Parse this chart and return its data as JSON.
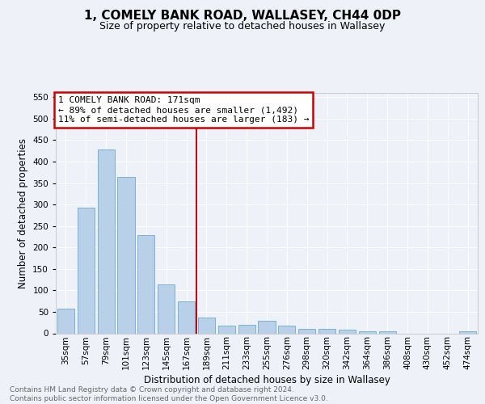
{
  "title": "1, COMELY BANK ROAD, WALLASEY, CH44 0DP",
  "subtitle": "Size of property relative to detached houses in Wallasey",
  "xlabel": "Distribution of detached houses by size in Wallasey",
  "ylabel": "Number of detached properties",
  "bar_labels": [
    "35sqm",
    "57sqm",
    "79sqm",
    "101sqm",
    "123sqm",
    "145sqm",
    "167sqm",
    "189sqm",
    "211sqm",
    "233sqm",
    "255sqm",
    "276sqm",
    "298sqm",
    "320sqm",
    "342sqm",
    "364sqm",
    "386sqm",
    "408sqm",
    "430sqm",
    "452sqm",
    "474sqm"
  ],
  "bar_values": [
    57,
    293,
    428,
    365,
    228,
    113,
    75,
    37,
    18,
    20,
    29,
    17,
    11,
    10,
    8,
    5,
    4,
    0,
    0,
    0,
    5
  ],
  "bar_color": "#b8d0e8",
  "bar_edge_color": "#6aaad4",
  "vline_color": "#cc0000",
  "annotation_text": "1 COMELY BANK ROAD: 171sqm\n← 89% of detached houses are smaller (1,492)\n11% of semi-detached houses are larger (183) →",
  "annotation_box_color": "#ffffff",
  "annotation_box_edge": "#cc0000",
  "ylim": [
    0,
    560
  ],
  "yticks": [
    0,
    50,
    100,
    150,
    200,
    250,
    300,
    350,
    400,
    450,
    500,
    550
  ],
  "footer_text": "Contains HM Land Registry data © Crown copyright and database right 2024.\nContains public sector information licensed under the Open Government Licence v3.0.",
  "bg_color": "#eef2f8",
  "plot_bg_color": "#eef2f8",
  "grid_color": "#ffffff",
  "title_fontsize": 11,
  "subtitle_fontsize": 9,
  "tick_fontsize": 7.5,
  "ylabel_fontsize": 8.5,
  "xlabel_fontsize": 8.5,
  "annot_fontsize": 8,
  "footer_fontsize": 6.5
}
